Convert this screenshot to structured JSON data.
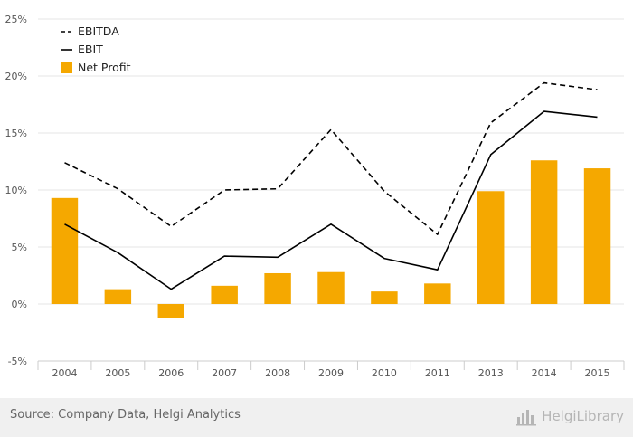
{
  "chart_data": {
    "type": "bar",
    "categories": [
      "2004",
      "2005",
      "2006",
      "2007",
      "2008",
      "2009",
      "2010",
      "2011",
      "2013",
      "2014",
      "2015"
    ],
    "series": [
      {
        "name": "EBITDA",
        "kind": "line",
        "style": "dashed",
        "color": "#000000",
        "values": [
          12.4,
          10.1,
          6.8,
          10.0,
          10.1,
          15.3,
          9.9,
          6.1,
          15.9,
          19.4,
          18.8
        ]
      },
      {
        "name": "EBIT",
        "kind": "line",
        "style": "solid",
        "color": "#000000",
        "values": [
          7.0,
          4.5,
          1.3,
          4.2,
          4.1,
          7.0,
          4.0,
          3.0,
          13.1,
          16.9,
          16.4
        ]
      },
      {
        "name": "Net Profit",
        "kind": "bar",
        "color": "#f5a800",
        "values": [
          9.3,
          1.3,
          -1.2,
          1.6,
          2.7,
          2.8,
          1.1,
          1.8,
          9.9,
          12.6,
          11.9
        ]
      }
    ],
    "yticks": [
      "-5%",
      "0%",
      "5%",
      "10%",
      "15%",
      "20%",
      "25%"
    ],
    "ylim": [
      -5,
      25
    ],
    "xlabel": "",
    "ylabel": "",
    "grid": true,
    "legend": "top-left"
  },
  "footer": {
    "source": "Source: Company Data, Helgi Analytics",
    "brand": "HelgiLibrary",
    "brand_icon": "chart-bars-icon"
  }
}
